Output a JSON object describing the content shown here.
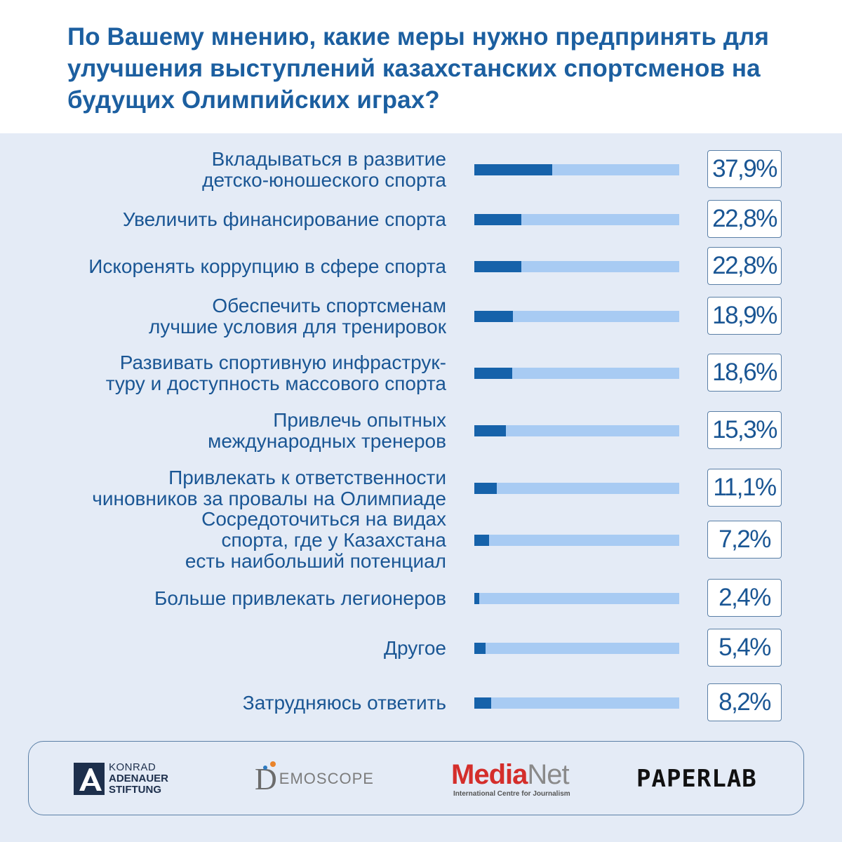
{
  "title": "По Вашему мнению, какие меры нужно предпринять для улучшения выступлений казахстанских спортсменов на будущих Олимпийских играх?",
  "chart_data": {
    "type": "bar",
    "orientation": "horizontal",
    "xlim": [
      0,
      100
    ],
    "categories": [
      "Вкладываться в развитие\nдетско-юношеского спорта",
      "Увеличить финансирование спорта",
      "Искоренять коррупцию в сфере спорта",
      "Обеспечить спортсменам\nлучшие условия для тренировок",
      "Развивать спортивную инфраструк-\nтуру и доступность массового спорта",
      "Привлечь опытных\nмеждународных тренеров",
      "Привлекать к ответственности\nчиновников за провалы на Олимпиаде",
      "Сосредоточиться на видах\nспорта, где у Казахстана\nесть наибольший потенциал",
      "Больше привлекать легионеров",
      "Другое",
      "Затрудняюсь ответить"
    ],
    "values": [
      37.9,
      22.8,
      22.8,
      18.9,
      18.6,
      15.3,
      11.1,
      7.2,
      2.4,
      5.4,
      8.2
    ],
    "value_labels": [
      "37,9%",
      "22,8%",
      "22,8%",
      "18,9%",
      "18,6%",
      "15,3%",
      "11,1%",
      "7,2%",
      "2,4%",
      "5,4%",
      "8,2%"
    ],
    "colors": {
      "fill": "#1662aa",
      "track": "#a8cbf3",
      "text": "#1a5694"
    }
  },
  "logos": {
    "kas": [
      "KONRAD",
      "ADENAUER",
      "STIFTUNG"
    ],
    "demoscope": {
      "mark": "D",
      "rest": "EMOSCOPE"
    },
    "medianet": {
      "part1": "Media",
      "part2": "Net",
      "subtitle": "International Centre for Journalism"
    },
    "paperlab": "PAPERLAB"
  }
}
